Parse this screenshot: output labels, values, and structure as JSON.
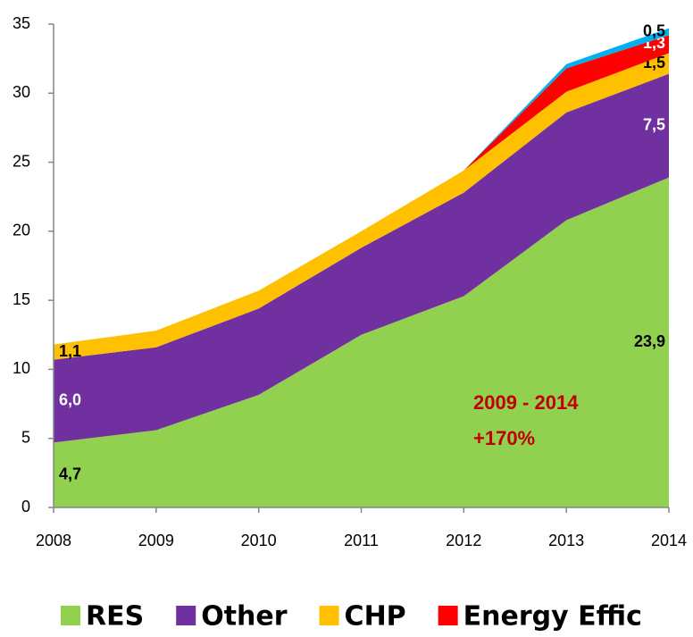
{
  "chart_data": {
    "type": "stacked_area",
    "x": [
      2008,
      2009,
      2010,
      2011,
      2012,
      2013,
      2014
    ],
    "xlim": [
      2008,
      2014
    ],
    "xticks": [
      2008,
      2009,
      2010,
      2011,
      2012,
      2013,
      2014
    ],
    "ylim": [
      0,
      35
    ],
    "yticks": [
      0,
      5,
      10,
      15,
      20,
      25,
      30,
      35
    ],
    "series": [
      {
        "name": "RES",
        "color": "#92d050",
        "label_color": "#000000",
        "values": [
          4.7,
          5.6,
          8.15,
          12.5,
          15.3,
          20.8,
          23.9
        ],
        "value_labels": [
          "4,7",
          null,
          null,
          null,
          null,
          null,
          "23,9"
        ]
      },
      {
        "name": "Other",
        "color": "#7030a0",
        "label_color": "#ffffff",
        "values": [
          6.0,
          6.0,
          6.25,
          6.3,
          7.5,
          7.8,
          7.5
        ],
        "value_labels": [
          "6,0",
          null,
          null,
          null,
          null,
          null,
          "7,5"
        ]
      },
      {
        "name": "CHP",
        "color": "#ffc000",
        "label_color": "#000000",
        "values": [
          1.1,
          1.2,
          1.3,
          1.2,
          1.6,
          1.5,
          1.5
        ],
        "value_labels": [
          "1,1",
          null,
          null,
          null,
          null,
          null,
          "1,5"
        ]
      },
      {
        "name": "Energy Effic",
        "color": "#ff0000",
        "label_color": "#ffffff",
        "values": [
          null,
          null,
          null,
          null,
          0,
          1.7,
          1.3
        ],
        "value_labels": [
          null,
          null,
          null,
          null,
          null,
          null,
          "1,3"
        ]
      },
      {
        "color": "#00b0f0",
        "label_color": "#000000",
        "values": [
          null,
          null,
          null,
          null,
          0,
          0.3,
          0.5
        ],
        "value_labels": [
          null,
          null,
          null,
          null,
          null,
          null,
          "0,5"
        ]
      }
    ],
    "annotations": [
      "2009 - 2014",
      "+170%"
    ]
  }
}
